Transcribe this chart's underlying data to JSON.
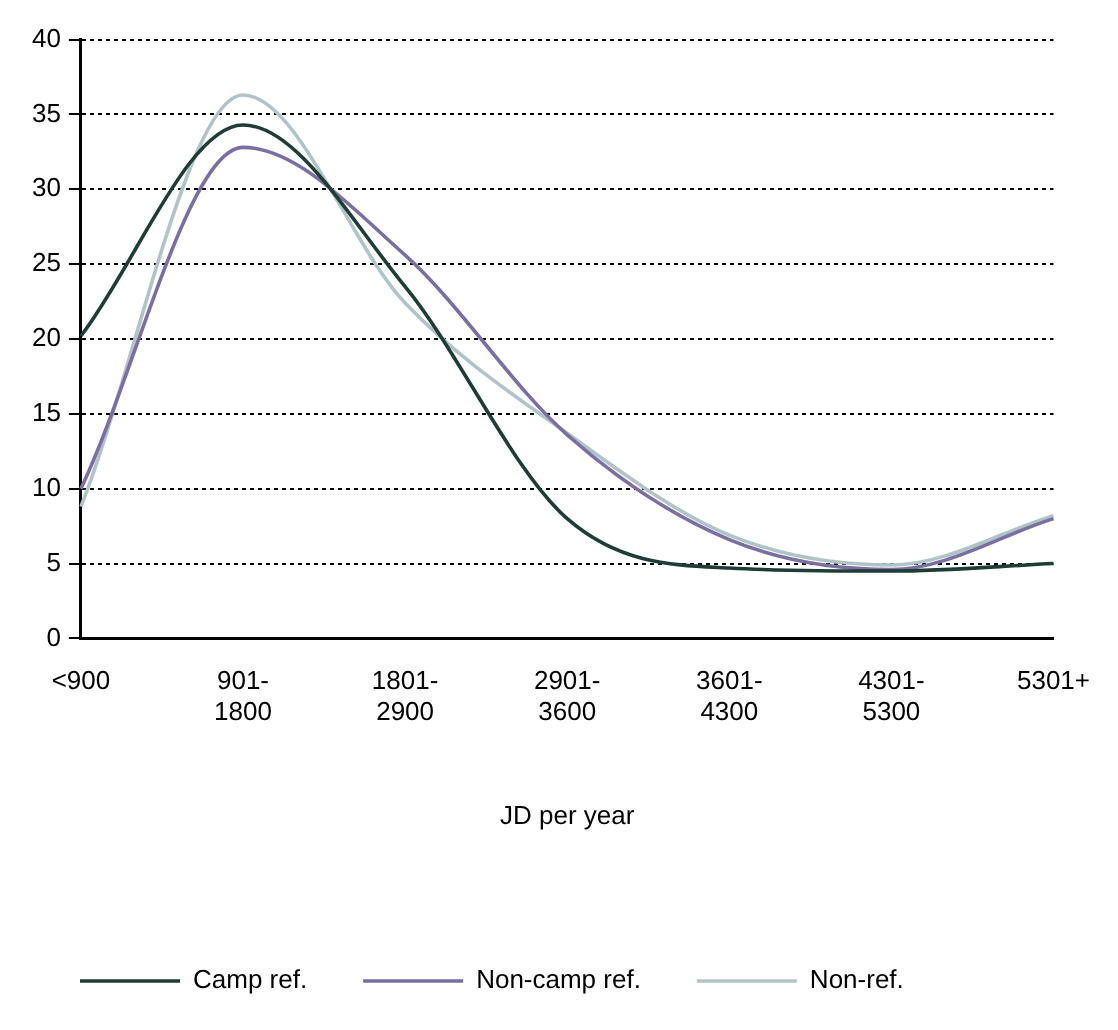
{
  "chart_data": {
    "type": "line",
    "xlabel": "JD per year",
    "categories": [
      "<900",
      "901-1800",
      "1801-2900",
      "2901-3600",
      "3601-4300",
      "4301-5300",
      "5301+"
    ],
    "series": [
      {
        "name": "Camp ref.",
        "color": "#1f3d36",
        "values": [
          20.2,
          34.3,
          23.5,
          8,
          4.7,
          4.5,
          5
        ]
      },
      {
        "name": "Non-camp ref.",
        "color": "#7a6fa0",
        "values": [
          10,
          32.8,
          25.6,
          13.6,
          6.6,
          4.6,
          8
        ]
      },
      {
        "name": "Non-ref.",
        "color": "#b0c4c8",
        "values": [
          8.8,
          36.3,
          22.4,
          13.7,
          6.9,
          4.9,
          8.2
        ]
      }
    ],
    "ylim": [
      0,
      40
    ],
    "yticks": [
      0,
      5,
      10,
      15,
      20,
      25,
      30,
      35,
      40
    ],
    "grid": "y",
    "legend": "bottom",
    "marker": "none",
    "line_style": "solid"
  }
}
